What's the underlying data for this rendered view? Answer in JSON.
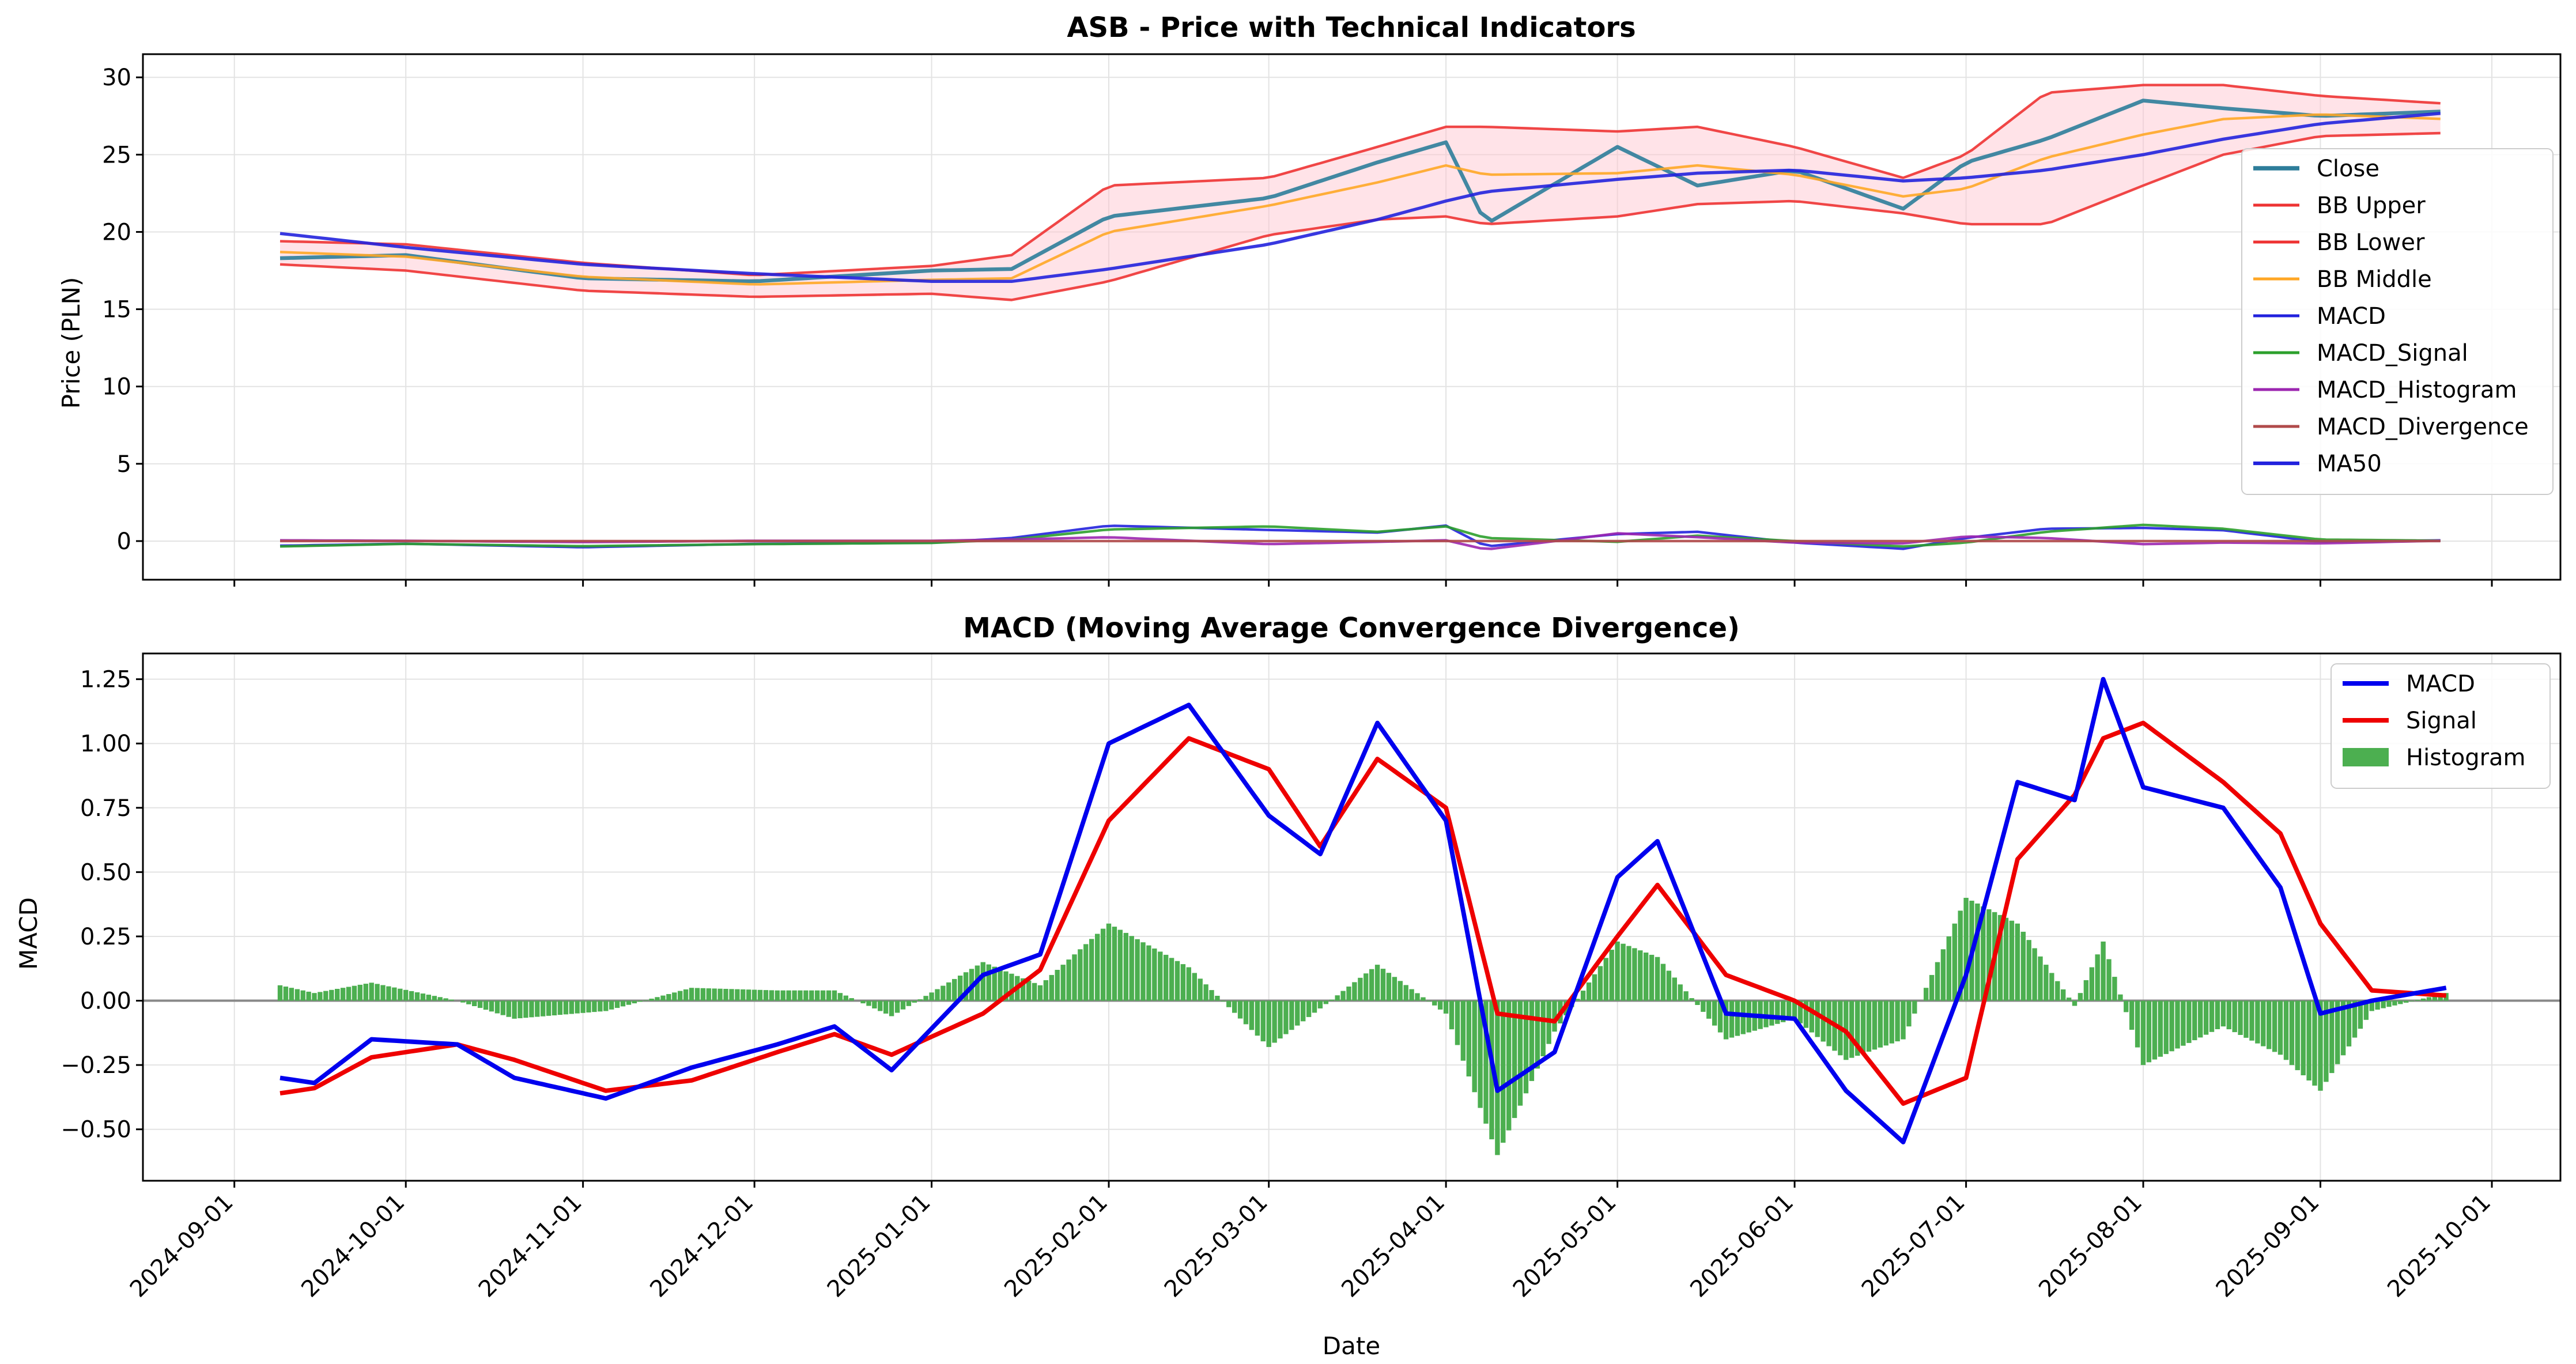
{
  "chart_data": [
    {
      "type": "line",
      "title": "ASB - Price with Technical Indicators",
      "xlabel": "",
      "ylabel": "Price (PLN)",
      "ylim": [
        -2.5,
        31.5
      ],
      "yticks": [
        0,
        5,
        10,
        15,
        20,
        25,
        30
      ],
      "grid": true,
      "legend_position": "right",
      "x_anchor_dates": [
        "2024-09-09",
        "2024-10-01",
        "2024-11-01",
        "2024-12-01",
        "2025-01-01",
        "2025-01-15",
        "2025-02-01",
        "2025-03-01",
        "2025-03-20",
        "2025-04-01",
        "2025-04-08",
        "2025-05-01",
        "2025-05-15",
        "2025-06-01",
        "2025-06-20",
        "2025-07-01",
        "2025-07-15",
        "2025-08-01",
        "2025-08-15",
        "2025-09-01",
        "2025-09-23"
      ],
      "series": [
        {
          "name": "Close",
          "color": "#2e7d9a",
          "width": 3,
          "values": [
            18.3,
            18.5,
            17.0,
            16.8,
            17.5,
            17.6,
            21.0,
            22.2,
            24.5,
            25.8,
            20.5,
            25.5,
            23.0,
            24.0,
            21.5,
            24.5,
            26.0,
            28.5,
            28.0,
            27.5,
            27.8
          ]
        },
        {
          "name": "BB Upper",
          "color": "#ee3333",
          "width": 2,
          "values": [
            19.4,
            19.2,
            18.0,
            17.2,
            17.8,
            18.5,
            23.0,
            23.5,
            25.5,
            26.8,
            26.8,
            26.5,
            26.8,
            25.5,
            23.5,
            25.0,
            29.0,
            29.5,
            29.5,
            28.8,
            28.3
          ]
        },
        {
          "name": "BB Lower",
          "color": "#ee3333",
          "width": 2,
          "values": [
            17.9,
            17.5,
            16.2,
            15.8,
            16.0,
            15.6,
            16.8,
            19.8,
            20.8,
            21.0,
            20.5,
            21.0,
            21.8,
            22.0,
            21.2,
            20.5,
            20.5,
            23.0,
            25.0,
            26.2,
            26.4
          ]
        },
        {
          "name": "BB Middle",
          "color": "#ffa726",
          "width": 2,
          "values": [
            18.7,
            18.4,
            17.1,
            16.6,
            16.9,
            17.0,
            20.0,
            21.7,
            23.2,
            24.3,
            23.7,
            23.8,
            24.3,
            23.7,
            22.3,
            22.8,
            24.8,
            26.3,
            27.3,
            27.6,
            27.3
          ]
        },
        {
          "name": "MACD",
          "color": "#2222dd",
          "width": 2,
          "values": [
            -0.3,
            -0.17,
            -0.4,
            -0.18,
            -0.1,
            0.2,
            1.0,
            0.72,
            0.55,
            1.0,
            -0.35,
            0.45,
            0.6,
            -0.1,
            -0.5,
            0.2,
            0.8,
            0.85,
            0.7,
            -0.05,
            0.05
          ]
        },
        {
          "name": "MACD_Signal",
          "color": "#2ca02c",
          "width": 2,
          "values": [
            -0.35,
            -0.18,
            -0.33,
            -0.2,
            -0.12,
            0.1,
            0.75,
            0.95,
            0.6,
            0.95,
            0.2,
            -0.05,
            0.35,
            0.0,
            -0.35,
            -0.1,
            0.6,
            1.05,
            0.8,
            0.1,
            0.02
          ]
        },
        {
          "name": "MACD_Histogram",
          "color": "#9c27b0",
          "width": 2,
          "values": [
            0.05,
            0.02,
            -0.07,
            0.02,
            0.02,
            0.1,
            0.25,
            -0.2,
            -0.05,
            0.05,
            -0.55,
            0.5,
            0.25,
            -0.1,
            -0.15,
            0.3,
            0.2,
            -0.2,
            -0.1,
            -0.15,
            0.03
          ]
        },
        {
          "name": "MACD_Divergence",
          "color": "#b04a4a",
          "width": 2,
          "values": [
            0,
            0,
            0,
            0,
            0,
            0,
            0,
            0,
            0,
            0,
            0,
            0,
            0,
            0,
            0,
            0,
            0,
            0,
            0,
            0,
            0
          ]
        },
        {
          "name": "MA50",
          "color": "#2222dd",
          "width": 2.5,
          "values": [
            19.9,
            19.0,
            17.9,
            17.3,
            16.8,
            16.8,
            17.6,
            19.2,
            20.8,
            22.0,
            22.6,
            23.4,
            23.8,
            24.0,
            23.3,
            23.5,
            24.0,
            25.0,
            26.0,
            27.0,
            27.7
          ]
        }
      ]
    },
    {
      "type": "line+bar",
      "title": "MACD (Moving Average Convergence Divergence)",
      "xlabel": "Date",
      "ylabel": "MACD",
      "ylim": [
        -0.7,
        1.35
      ],
      "yticks": [
        -0.5,
        -0.25,
        0.0,
        0.25,
        0.5,
        0.75,
        1.0,
        1.25
      ],
      "ytick_labels": [
        "−0.50",
        "−0.25",
        "0.00",
        "0.25",
        "0.50",
        "0.75",
        "1.00",
        "1.25"
      ],
      "grid": true,
      "legend_position": "top-right",
      "x_anchor_dates": [
        "2024-09-09",
        "2024-09-15",
        "2024-09-25",
        "2024-10-10",
        "2024-10-20",
        "2024-11-05",
        "2024-11-20",
        "2024-12-05",
        "2024-12-15",
        "2024-12-25",
        "2025-01-10",
        "2025-01-20",
        "2025-02-01",
        "2025-02-15",
        "2025-03-01",
        "2025-03-10",
        "2025-03-20",
        "2025-04-01",
        "2025-04-10",
        "2025-04-20",
        "2025-05-01",
        "2025-05-08",
        "2025-05-20",
        "2025-06-01",
        "2025-06-10",
        "2025-06-20",
        "2025-07-01",
        "2025-07-10",
        "2025-07-20",
        "2025-07-25",
        "2025-08-01",
        "2025-08-15",
        "2025-08-25",
        "2025-09-01",
        "2025-09-10",
        "2025-09-23"
      ],
      "series": [
        {
          "name": "MACD",
          "color": "#0000ee",
          "width": 6,
          "values": [
            -0.3,
            -0.32,
            -0.15,
            -0.17,
            -0.3,
            -0.38,
            -0.26,
            -0.17,
            -0.1,
            -0.27,
            0.1,
            0.18,
            1.0,
            1.15,
            0.72,
            0.57,
            1.08,
            0.7,
            -0.35,
            -0.2,
            0.48,
            0.62,
            -0.05,
            -0.07,
            -0.35,
            -0.55,
            0.1,
            0.85,
            0.78,
            1.25,
            0.83,
            0.75,
            0.44,
            -0.05,
            0.0,
            0.05
          ]
        },
        {
          "name": "Signal",
          "color": "#ee0000",
          "width": 6,
          "values": [
            -0.36,
            -0.34,
            -0.22,
            -0.17,
            -0.23,
            -0.35,
            -0.31,
            -0.2,
            -0.13,
            -0.21,
            -0.05,
            0.12,
            0.7,
            1.02,
            0.9,
            0.6,
            0.94,
            0.75,
            -0.05,
            -0.08,
            0.25,
            0.45,
            0.1,
            0.0,
            -0.12,
            -0.4,
            -0.3,
            0.55,
            0.8,
            1.02,
            1.08,
            0.85,
            0.65,
            0.3,
            0.04,
            0.02
          ]
        },
        {
          "name": "Histogram",
          "color": "#4caf50",
          "type": "bar",
          "values": [
            0.06,
            0.03,
            0.07,
            0.0,
            -0.07,
            -0.04,
            0.05,
            0.04,
            0.04,
            -0.06,
            0.15,
            0.06,
            0.3,
            0.13,
            -0.18,
            -0.03,
            0.14,
            -0.05,
            -0.6,
            -0.12,
            0.23,
            0.17,
            -0.15,
            -0.07,
            -0.23,
            -0.15,
            0.4,
            0.3,
            -0.02,
            0.23,
            -0.25,
            -0.1,
            -0.21,
            -0.35,
            -0.04,
            0.03
          ]
        }
      ]
    }
  ],
  "x_axis": {
    "tick_dates": [
      "2024-09-01",
      "2024-10-01",
      "2024-11-01",
      "2024-12-01",
      "2025-01-01",
      "2025-02-01",
      "2025-03-01",
      "2025-04-01",
      "2025-05-01",
      "2025-06-01",
      "2025-07-01",
      "2025-08-01",
      "2025-09-01",
      "2025-10-01"
    ],
    "tick_labels": [
      "2024-09-01",
      "2024-10-01",
      "2024-11-01",
      "2024-12-01",
      "2025-01-01",
      "2025-02-01",
      "2025-03-01",
      "2025-04-01",
      "2025-05-01",
      "2025-06-01",
      "2025-07-01",
      "2025-08-01",
      "2025-09-01",
      "2025-10-01"
    ],
    "range": [
      "2024-08-16",
      "2025-10-13"
    ]
  }
}
